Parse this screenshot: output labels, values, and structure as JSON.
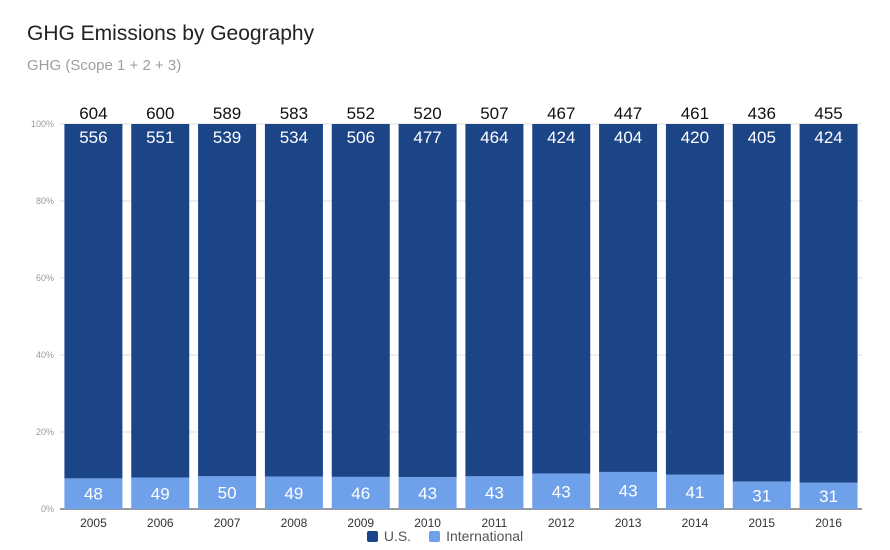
{
  "chart_data": {
    "type": "bar",
    "stacked": true,
    "normalized": true,
    "title": "GHG Emissions by Geography",
    "subtitle": "GHG (Scope 1 + 2 + 3)",
    "categories": [
      "2005",
      "2006",
      "2007",
      "2008",
      "2009",
      "2010",
      "2011",
      "2012",
      "2013",
      "2014",
      "2015",
      "2016"
    ],
    "series": [
      {
        "name": "International",
        "color": "#6fa0ea",
        "values": [
          48,
          49,
          50,
          49,
          46,
          43,
          43,
          43,
          43,
          41,
          31,
          31
        ]
      },
      {
        "name": "U.S.",
        "color": "#1c4587",
        "values": [
          556,
          551,
          539,
          534,
          506,
          477,
          464,
          424,
          404,
          420,
          405,
          424
        ]
      }
    ],
    "totals": [
      604,
      600,
      589,
      583,
      552,
      520,
      507,
      467,
      447,
      461,
      436,
      455
    ],
    "y_ticks": [
      "0%",
      "20%",
      "40%",
      "60%",
      "80%",
      "100%"
    ],
    "ylim": [
      0,
      100
    ],
    "grid": true,
    "legend_position": "bottom"
  }
}
